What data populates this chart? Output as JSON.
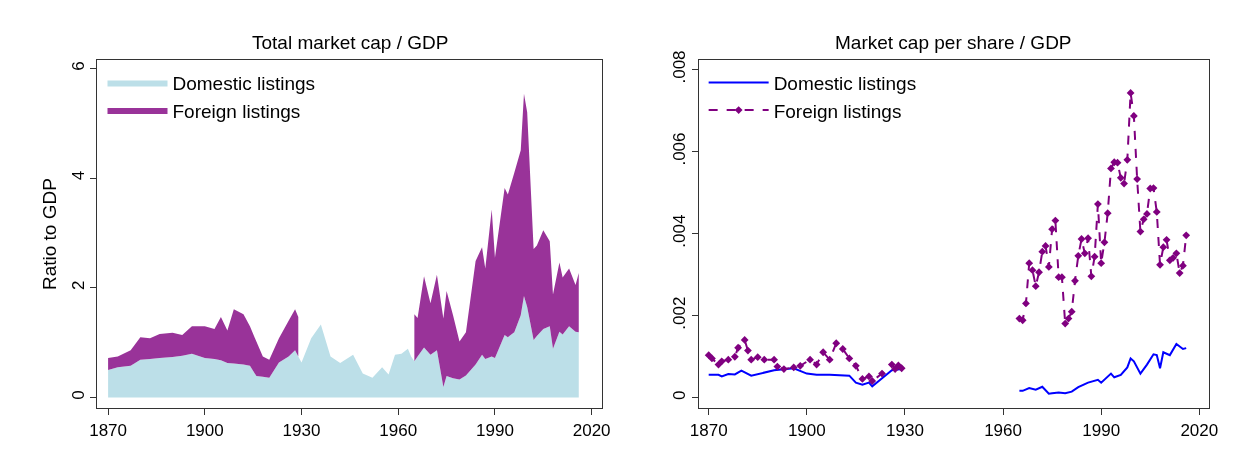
{
  "chart_data": [
    {
      "type": "area",
      "title": "Total market cap / GDP",
      "ylabel": "Ratio to GDP",
      "stacked": true,
      "x": [
        1870,
        1873,
        1877,
        1880,
        1883,
        1886,
        1890,
        1893,
        1896,
        1900,
        1903,
        1905,
        1907,
        1909,
        1912,
        1914,
        1916,
        1918,
        1920,
        1923,
        1926,
        1928,
        1929,
        1930,
        1933,
        1936,
        1939,
        1942,
        1946,
        1949,
        1952,
        1955,
        1957,
        1959,
        1961,
        1963,
        1964,
        1965,
        1966,
        1968,
        1970,
        1972,
        1974,
        1975,
        1977,
        1979,
        1981,
        1984,
        1986,
        1987,
        1989,
        1990,
        1993,
        1994,
        1996,
        1998,
        1999,
        2000,
        2002,
        2003,
        2005,
        2007,
        2008,
        2010,
        2011,
        2013,
        2015,
        2016
      ],
      "series": [
        {
          "name": "Domestic listings",
          "color": "#bcdfe8",
          "values": [
            0.5,
            0.55,
            0.58,
            0.69,
            0.7,
            0.72,
            0.74,
            0.76,
            0.8,
            0.72,
            0.7,
            0.68,
            0.63,
            0.62,
            0.6,
            0.58,
            0.39,
            0.38,
            0.36,
            0.64,
            0.75,
            0.86,
            0.75,
            0.64,
            1.08,
            1.33,
            0.75,
            0.63,
            0.78,
            0.44,
            0.36,
            0.55,
            0.42,
            0.78,
            0.8,
            0.89,
            0.75,
            0.66,
            0.75,
            0.91,
            0.78,
            0.86,
            0.19,
            0.39,
            0.35,
            0.33,
            0.4,
            0.6,
            0.78,
            0.7,
            0.75,
            0.72,
            1.14,
            1.1,
            1.19,
            1.5,
            1.85,
            1.65,
            1.05,
            1.12,
            1.25,
            1.3,
            0.89,
            1.2,
            1.15,
            1.3,
            1.2,
            1.19
          ]
        },
        {
          "name": "Foreign listings",
          "color": "#993399",
          "values": [
            0.22,
            0.2,
            0.28,
            0.41,
            0.38,
            0.44,
            0.44,
            0.38,
            0.5,
            0.58,
            0.55,
            0.79,
            0.59,
            0.99,
            0.92,
            0.72,
            0.63,
            0.37,
            0.33,
            0.44,
            0.65,
            0.75,
            0.72,
            null,
            null,
            null,
            null,
            null,
            null,
            null,
            null,
            null,
            null,
            null,
            null,
            null,
            null,
            0.86,
            0.7,
            1.3,
            0.94,
            1.38,
            1.25,
            1.55,
            1.15,
            0.69,
            0.79,
            1.89,
            1.96,
            1.65,
            2.68,
            1.83,
            2.68,
            2.6,
            2.91,
            3.01,
            3.69,
            3.55,
            1.66,
            1.65,
            1.8,
            1.55,
            0.99,
            1.26,
            1.04,
            1.05,
            0.85,
            1.08
          ]
        }
      ],
      "xlim": [
        1866.7,
        2023.2
      ],
      "xticks": [
        1870,
        1900,
        1930,
        1960,
        1990,
        2020
      ],
      "ylim": [
        -0.2,
        6.16
      ],
      "yticks": [
        0,
        2,
        4,
        6
      ],
      "legend": "top left"
    },
    {
      "type": "line",
      "title": "Market cap per share / GDP",
      "series": [
        {
          "name": "Domestic listings",
          "color": "#0000ff",
          "marker": "none",
          "line_style": "solid",
          "x": [
            1870,
            1873,
            1874,
            1876,
            1878,
            1880,
            1883,
            1890,
            1896,
            1900,
            1903,
            1907,
            1913,
            1915,
            1917,
            1919,
            1920,
            1922,
            1926,
            1929,
            1930,
            1964,
            1965,
            1966,
            1968,
            1970,
            1972,
            1974,
            1975,
            1977,
            1979,
            1981,
            1983,
            1986,
            1989,
            1990,
            1993,
            1994,
            1996,
            1998,
            1999,
            2000,
            2002,
            2004,
            2006,
            2007,
            2008,
            2009,
            2011,
            2013,
            2015,
            2016
          ],
          "values": [
            0.00056,
            0.00056,
            0.00052,
            0.00058,
            0.00057,
            0.00066,
            0.00054,
            0.00067,
            0.00072,
            0.00059,
            0.00056,
            0.00056,
            0.00054,
            0.00037,
            0.00032,
            0.00037,
            0.00028,
            0.00041,
            0.00067,
            0.0007,
            null,
            null,
            0.00017,
            0.00017,
            0.00024,
            0.0002,
            0.00027,
            0.0001,
            0.00011,
            0.00013,
            0.00011,
            0.00015,
            0.00026,
            0.00037,
            0.00044,
            0.00037,
            0.00059,
            0.0005,
            0.00056,
            0.00074,
            0.00096,
            0.00089,
            0.00059,
            0.00081,
            0.00106,
            0.00104,
            0.00072,
            0.00111,
            0.00104,
            0.00131,
            0.00119,
            0.00121
          ]
        },
        {
          "name": "Foreign listings",
          "color": "#800080",
          "marker": "diamond",
          "line_style": "dashed",
          "x": [
            1870,
            1871,
            1873,
            1874,
            1876,
            1878,
            1879,
            1881,
            1882,
            1883,
            1885,
            1887,
            1890,
            1891,
            1893,
            1896,
            1898,
            1901,
            1903,
            1905,
            1907,
            1909,
            1911,
            1913,
            1915,
            1917,
            1919,
            1920,
            1923,
            1926,
            1927,
            1928,
            1929,
            1930,
            1964,
            1965,
            1966,
            1967,
            1968,
            1969,
            1970,
            1971,
            1972,
            1973,
            1974,
            1975,
            1976,
            1977,
            1978,
            1979,
            1980,
            1981,
            1982,
            1983,
            1984,
            1985,
            1986,
            1987,
            1988,
            1989,
            1990,
            1991,
            1992,
            1993,
            1994,
            1995,
            1996,
            1997,
            1998,
            1999,
            2000,
            2001,
            2002,
            2003,
            2004,
            2005,
            2006,
            2007,
            2008,
            2009,
            2010,
            2011,
            2012,
            2013,
            2014,
            2015,
            2016
          ],
          "values": [
            0.00104,
            0.00096,
            0.00081,
            0.00089,
            0.00093,
            0.001,
            0.00122,
            0.00141,
            0.00115,
            0.00093,
            0.00099,
            0.00093,
            0.00093,
            0.00076,
            0.0007,
            0.00074,
            0.00078,
            0.00093,
            0.00081,
            0.00111,
            0.00093,
            0.00133,
            0.00119,
            0.00096,
            0.00078,
            0.00046,
            0.00052,
            0.00041,
            0.00059,
            0.00081,
            0.0007,
            0.00079,
            0.00072,
            null,
            null,
            0.00193,
            0.00189,
            0.0023,
            0.00328,
            0.00311,
            0.00272,
            0.00306,
            0.00356,
            0.0037,
            0.00319,
            0.00411,
            0.00432,
            0.00294,
            0.00294,
            0.00181,
            0.00193,
            0.0021,
            0.00285,
            0.00346,
            0.00387,
            0.00352,
            0.00389,
            0.00296,
            0.00344,
            0.00472,
            0.00328,
            0.00379,
            0.0045,
            0.00559,
            0.00574,
            0.00573,
            0.00536,
            0.00522,
            0.0058,
            0.00743,
            0.00687,
            0.00533,
            0.00405,
            0.00435,
            0.00448,
            0.0051,
            0.00511,
            0.00453,
            0.00324,
            0.00367,
            0.00385,
            0.00335,
            0.00341,
            0.00352,
            0.00304,
            0.00322,
            0.00396
          ]
        }
      ],
      "xlim": [
        1866.9,
        2023
      ],
      "xticks": [
        1870,
        1900,
        1930,
        1960,
        1990,
        2020
      ],
      "ylim": [
        -0.00026,
        0.00824
      ],
      "yticks": [
        0,
        {
          "value": 0.002,
          "label": ".002"
        },
        {
          "value": 0.004,
          "label": ".004"
        },
        {
          "value": 0.006,
          "label": ".006"
        },
        {
          "value": 0.008,
          "label": ".008"
        }
      ],
      "legend": "top left"
    }
  ]
}
